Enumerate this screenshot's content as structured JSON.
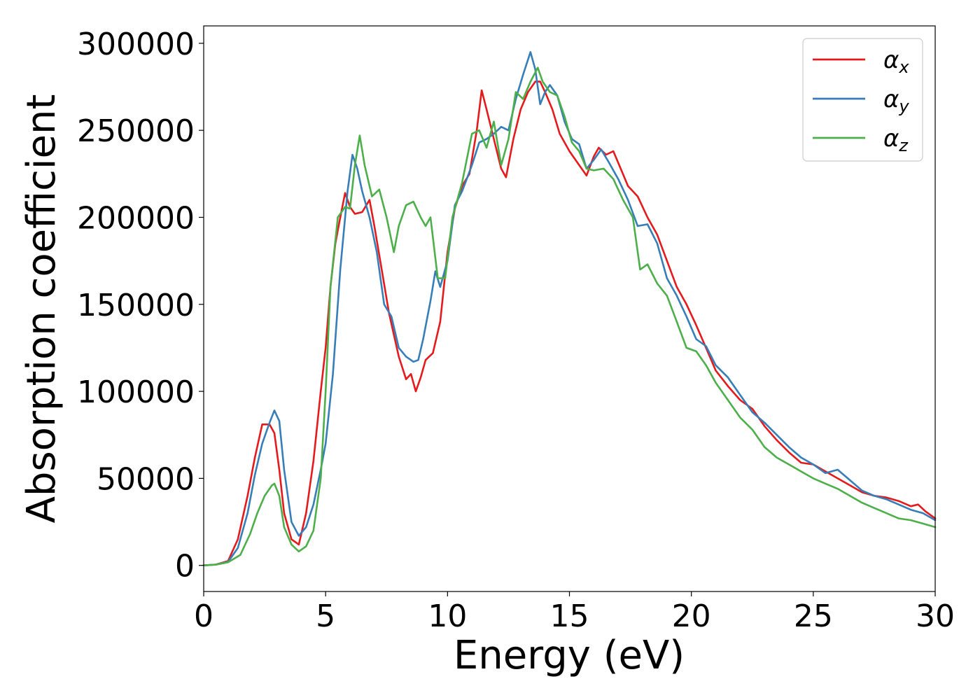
{
  "chart_data": {
    "type": "line",
    "title": "",
    "xlabel": "Energy (eV)",
    "ylabel": "Absorption coefficient",
    "xlim": [
      0,
      30
    ],
    "ylim": [
      -15000,
      310000
    ],
    "xticks": [
      0,
      5,
      10,
      15,
      20,
      25,
      30
    ],
    "yticks": [
      0,
      50000,
      100000,
      150000,
      200000,
      250000,
      300000
    ],
    "grid": false,
    "legend_position": "top-right",
    "series": [
      {
        "name": "α",
        "subscript": "x",
        "color": "#e41a1c",
        "x": [
          0,
          0.5,
          1.0,
          1.4,
          1.8,
          2.1,
          2.4,
          2.7,
          2.9,
          3.1,
          3.3,
          3.6,
          3.9,
          4.2,
          4.5,
          4.8,
          5.0,
          5.2,
          5.4,
          5.6,
          5.8,
          6.0,
          6.2,
          6.5,
          6.8,
          7.0,
          7.3,
          7.6,
          8.0,
          8.3,
          8.5,
          8.7,
          8.9,
          9.1,
          9.4,
          9.7,
          10.0,
          10.3,
          10.6,
          10.9,
          11.2,
          11.4,
          11.6,
          11.9,
          12.2,
          12.4,
          12.7,
          13.0,
          13.3,
          13.6,
          13.8,
          14.0,
          14.3,
          14.6,
          15.0,
          15.4,
          15.7,
          16.0,
          16.2,
          16.5,
          16.8,
          17.1,
          17.4,
          17.8,
          18.2,
          18.6,
          19.0,
          19.4,
          19.8,
          20.2,
          20.6,
          21.0,
          21.5,
          22.0,
          22.5,
          23.0,
          23.5,
          24.0,
          24.5,
          25.0,
          25.5,
          26.0,
          26.5,
          27.0,
          27.5,
          28.0,
          28.5,
          29.0,
          29.3,
          29.6,
          30.0
        ],
        "y": [
          0,
          500,
          2500,
          15000,
          40000,
          62000,
          81000,
          81000,
          76000,
          55000,
          30000,
          15000,
          12000,
          30000,
          60000,
          100000,
          125000,
          160000,
          185000,
          200000,
          214000,
          206000,
          202000,
          203000,
          210000,
          195000,
          170000,
          145000,
          120000,
          107000,
          110000,
          100000,
          108000,
          118000,
          122000,
          140000,
          180000,
          205000,
          218000,
          225000,
          250000,
          273000,
          262000,
          245000,
          228000,
          223000,
          245000,
          262000,
          272000,
          278000,
          278000,
          272000,
          262000,
          248000,
          238000,
          230000,
          224000,
          235000,
          240000,
          236000,
          238000,
          228000,
          218000,
          212000,
          200000,
          190000,
          175000,
          160000,
          150000,
          138000,
          125000,
          112000,
          103000,
          95000,
          90000,
          80000,
          72000,
          65000,
          59000,
          58000,
          54000,
          50000,
          46000,
          42000,
          40000,
          39000,
          37000,
          34000,
          35000,
          31000,
          27000
        ]
      },
      {
        "name": "α",
        "subscript": "y",
        "color": "#377eb8",
        "x": [
          0,
          0.5,
          1.0,
          1.4,
          1.8,
          2.1,
          2.4,
          2.7,
          2.9,
          3.1,
          3.3,
          3.6,
          3.9,
          4.2,
          4.5,
          4.8,
          5.0,
          5.3,
          5.6,
          5.9,
          6.1,
          6.3,
          6.5,
          6.8,
          7.1,
          7.4,
          7.7,
          8.0,
          8.3,
          8.6,
          8.8,
          9.0,
          9.3,
          9.5,
          9.7,
          10.0,
          10.3,
          10.6,
          11.0,
          11.3,
          11.6,
          11.9,
          12.2,
          12.5,
          12.8,
          13.1,
          13.4,
          13.6,
          13.8,
          14.0,
          14.2,
          14.5,
          14.8,
          15.1,
          15.4,
          15.7,
          16.0,
          16.3,
          16.6,
          17.0,
          17.4,
          17.8,
          18.2,
          18.6,
          19.0,
          19.4,
          19.8,
          20.2,
          20.6,
          21.0,
          21.5,
          22.0,
          22.5,
          23.0,
          23.5,
          24.0,
          24.5,
          25.0,
          25.5,
          26.0,
          26.5,
          27.0,
          27.5,
          28.0,
          28.5,
          29.0,
          29.5,
          30.0
        ],
        "y": [
          0,
          500,
          2000,
          10000,
          30000,
          52000,
          70000,
          82000,
          89000,
          83000,
          55000,
          25000,
          17000,
          22000,
          35000,
          55000,
          70000,
          110000,
          170000,
          215000,
          236000,
          228000,
          215000,
          200000,
          180000,
          150000,
          143000,
          125000,
          120000,
          117000,
          118000,
          130000,
          152000,
          169000,
          160000,
          175000,
          207000,
          215000,
          230000,
          243000,
          245000,
          248000,
          252000,
          250000,
          268000,
          282000,
          295000,
          285000,
          265000,
          272000,
          276000,
          270000,
          255000,
          245000,
          242000,
          228000,
          233000,
          239000,
          232000,
          222000,
          210000,
          195000,
          196000,
          185000,
          165000,
          155000,
          143000,
          130000,
          126000,
          115000,
          108000,
          98000,
          88000,
          82000,
          75000,
          68000,
          62000,
          58000,
          53000,
          55000,
          49000,
          43000,
          40000,
          38000,
          35000,
          32000,
          30000,
          26000
        ]
      },
      {
        "name": "α",
        "subscript": "z",
        "color": "#4daf4a",
        "x": [
          0,
          0.5,
          1.0,
          1.5,
          1.9,
          2.2,
          2.5,
          2.8,
          2.9,
          3.1,
          3.3,
          3.6,
          3.9,
          4.2,
          4.5,
          4.8,
          5.0,
          5.2,
          5.5,
          5.8,
          6.0,
          6.2,
          6.4,
          6.6,
          6.9,
          7.2,
          7.5,
          7.8,
          8.0,
          8.3,
          8.6,
          8.9,
          9.1,
          9.3,
          9.6,
          9.9,
          10.2,
          10.6,
          11.0,
          11.3,
          11.6,
          11.9,
          12.2,
          12.5,
          12.8,
          13.1,
          13.4,
          13.7,
          13.9,
          14.2,
          14.5,
          14.8,
          15.1,
          15.4,
          15.7,
          16.0,
          16.4,
          16.8,
          17.2,
          17.6,
          17.9,
          18.2,
          18.6,
          19.0,
          19.4,
          19.8,
          20.2,
          20.6,
          21.0,
          21.5,
          22.0,
          22.5,
          23.0,
          23.5,
          24.0,
          24.5,
          25.0,
          25.5,
          26.0,
          26.5,
          27.0,
          27.5,
          28.0,
          28.5,
          29.0,
          29.5,
          30.0
        ],
        "y": [
          0,
          400,
          1800,
          6000,
          18000,
          30000,
          40000,
          46000,
          47000,
          40000,
          22000,
          12000,
          8000,
          11000,
          20000,
          50000,
          100000,
          160000,
          200000,
          206000,
          205000,
          230000,
          247000,
          230000,
          212000,
          216000,
          200000,
          180000,
          195000,
          207000,
          209000,
          200000,
          195000,
          200000,
          165000,
          165000,
          200000,
          220000,
          248000,
          250000,
          240000,
          255000,
          230000,
          245000,
          272000,
          268000,
          278000,
          286000,
          278000,
          272000,
          270000,
          258000,
          243000,
          238000,
          228000,
          227000,
          228000,
          222000,
          210000,
          200000,
          170000,
          173000,
          162000,
          155000,
          140000,
          125000,
          123000,
          115000,
          105000,
          95000,
          85000,
          78000,
          68000,
          62000,
          58000,
          54000,
          50000,
          47000,
          44000,
          40000,
          36000,
          33000,
          30000,
          27000,
          26000,
          24000,
          22000
        ]
      }
    ]
  }
}
